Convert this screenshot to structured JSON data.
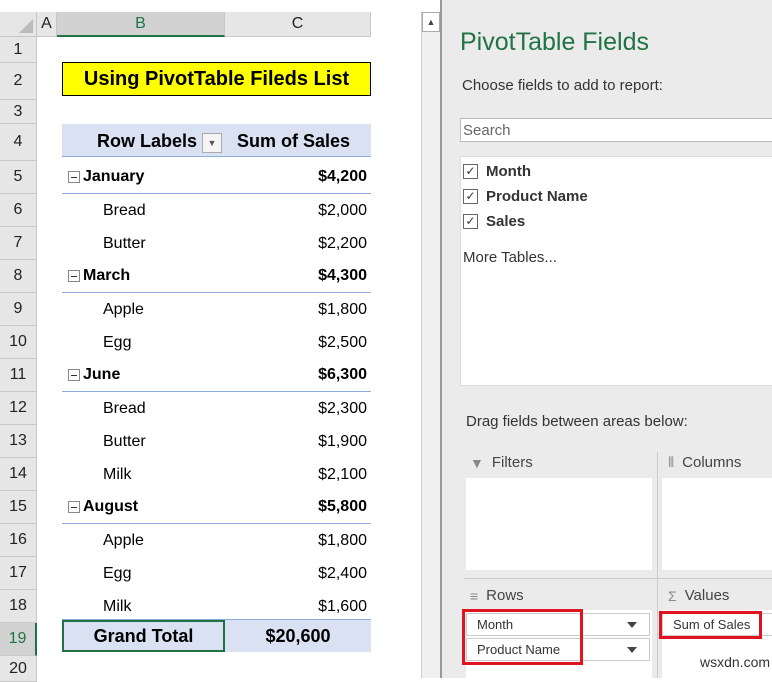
{
  "columns": [
    "A",
    "B",
    "C"
  ],
  "rows": [
    "1",
    "2",
    "3",
    "4",
    "5",
    "6",
    "7",
    "8",
    "9",
    "10",
    "11",
    "12",
    "13",
    "14",
    "15",
    "16",
    "17",
    "18",
    "19",
    "20"
  ],
  "title": "Using PivotTable Fileds List",
  "pivot": {
    "header": {
      "row_labels": "Row Labels",
      "sum": "Sum of Sales"
    },
    "rows": [
      {
        "type": "month",
        "label": "January",
        "value": "$4,200"
      },
      {
        "type": "item",
        "label": "Bread",
        "value": "$2,000"
      },
      {
        "type": "item",
        "label": "Butter",
        "value": "$2,200"
      },
      {
        "type": "month",
        "label": "March",
        "value": "$4,300"
      },
      {
        "type": "item",
        "label": "Apple",
        "value": "$1,800"
      },
      {
        "type": "item",
        "label": "Egg",
        "value": "$2,500"
      },
      {
        "type": "month",
        "label": "June",
        "value": "$6,300"
      },
      {
        "type": "item",
        "label": "Bread",
        "value": "$2,300"
      },
      {
        "type": "item",
        "label": "Butter",
        "value": "$1,900"
      },
      {
        "type": "item",
        "label": "Milk",
        "value": "$2,100"
      },
      {
        "type": "month",
        "label": "August",
        "value": "$5,800"
      },
      {
        "type": "item",
        "label": "Apple",
        "value": "$1,800"
      },
      {
        "type": "item",
        "label": "Egg",
        "value": "$2,400"
      },
      {
        "type": "item",
        "label": "Milk",
        "value": "$1,600"
      }
    ],
    "grand": {
      "label": "Grand Total",
      "value": "$20,600"
    }
  },
  "panel": {
    "title": "PivotTable Fields",
    "subtitle": "Choose fields to add to report:",
    "search_placeholder": "Search",
    "fields": [
      {
        "label": "Month",
        "checked": true
      },
      {
        "label": "Product Name",
        "checked": true
      },
      {
        "label": "Sales",
        "checked": true
      }
    ],
    "more_tables": "More Tables...",
    "drag_hint": "Drag fields between areas below:",
    "areas": {
      "filters": "Filters",
      "columns": "Columns",
      "rows": "Rows",
      "values": "Values"
    },
    "rows_fields": [
      "Month",
      "Product Name"
    ],
    "values_fields": [
      "Sum of Sales"
    ]
  },
  "watermark": "wsxdn.com",
  "colors": {
    "accent": "#217346",
    "pivot_header": "#d9e1f2",
    "title_bg": "#ffff00",
    "highlight": "#e0141e"
  }
}
